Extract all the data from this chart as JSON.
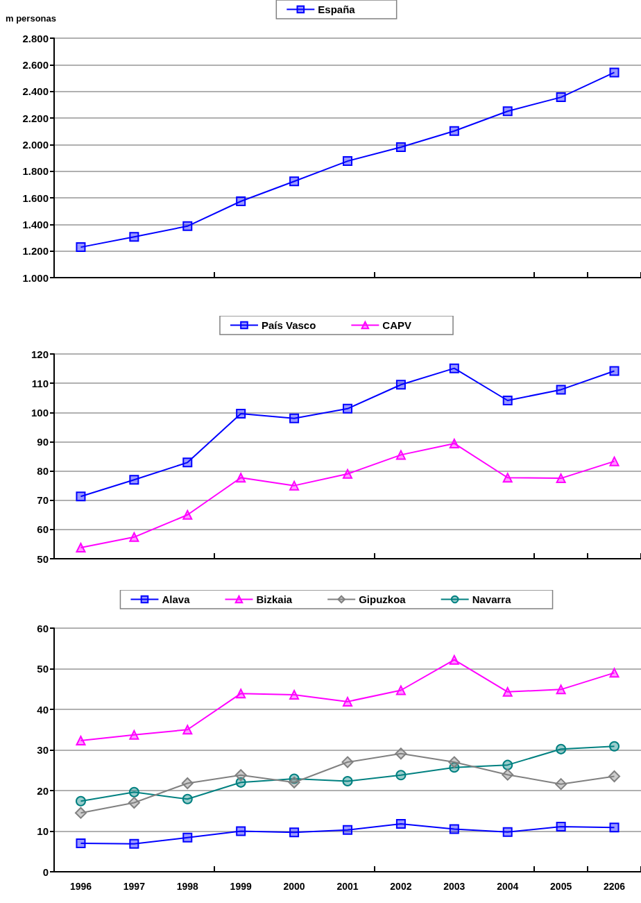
{
  "chart_data": [
    {
      "type": "line",
      "ylabel": "m personas",
      "categories": [
        "1996",
        "1997",
        "1998",
        "1999",
        "2000",
        "2001",
        "2002",
        "2003",
        "2004",
        "2005",
        "2206"
      ],
      "ylim": [
        1000,
        2800
      ],
      "yticks": [
        {
          "value": 1000,
          "label": "1.000"
        },
        {
          "value": 1200,
          "label": "1.200"
        },
        {
          "value": 1400,
          "label": "1.400"
        },
        {
          "value": 1600,
          "label": "1.600"
        },
        {
          "value": 1800,
          "label": "1.800"
        },
        {
          "value": 2000,
          "label": "2.000"
        },
        {
          "value": 2200,
          "label": "2.200"
        },
        {
          "value": 2400,
          "label": "2.400"
        },
        {
          "value": 2600,
          "label": "2.600"
        },
        {
          "value": 2800,
          "label": "2.800"
        }
      ],
      "grid": "y",
      "legend": "top",
      "tick_labels": "y",
      "series": [
        {
          "name": "España",
          "color": "#0000ff",
          "marker": "square",
          "values": [
            1229,
            1307,
            1387,
            1574,
            1724,
            1876,
            1981,
            2102,
            2251,
            2356,
            2542
          ]
        }
      ]
    },
    {
      "type": "line",
      "categories": [
        "1996",
        "1997",
        "1998",
        "1999",
        "2000",
        "2001",
        "2002",
        "2003",
        "2004",
        "2005",
        "2206"
      ],
      "ylim": [
        50,
        120
      ],
      "yticks": [
        50,
        60,
        70,
        80,
        90,
        100,
        110,
        120
      ],
      "grid": "y",
      "legend": "top",
      "tick_labels": "y",
      "series": [
        {
          "name": "País Vasco",
          "color": "#0000ff",
          "marker": "square",
          "values": [
            71.3,
            77.0,
            82.9,
            99.6,
            98.0,
            101.3,
            109.5,
            115.1,
            104.1,
            107.8,
            114.2
          ]
        },
        {
          "name": "CAPV",
          "color": "#ff00ff",
          "marker": "triangle",
          "values": [
            53.8,
            57.4,
            65.0,
            77.7,
            75.0,
            79.0,
            85.5,
            89.4,
            77.7,
            77.5,
            83.3
          ]
        }
      ]
    },
    {
      "type": "line",
      "categories": [
        "1996",
        "1997",
        "1998",
        "1999",
        "2000",
        "2001",
        "2002",
        "2003",
        "2004",
        "2005",
        "2206"
      ],
      "ylim": [
        0,
        60
      ],
      "yticks": [
        0,
        10,
        20,
        30,
        40,
        50,
        60
      ],
      "grid": "y",
      "legend": "top",
      "series": [
        {
          "name": "Alava",
          "color": "#0000ff",
          "marker": "square",
          "values": [
            7.0,
            6.9,
            8.4,
            10.0,
            9.7,
            10.3,
            11.8,
            10.5,
            9.8,
            11.1,
            10.9
          ]
        },
        {
          "name": "Bizkaia",
          "color": "#ff00ff",
          "marker": "triangle",
          "values": [
            32.3,
            33.7,
            35.0,
            43.9,
            43.6,
            41.9,
            44.7,
            52.2,
            44.3,
            44.9,
            49.0
          ]
        },
        {
          "name": "Gipuzkoa",
          "color": "#808080",
          "marker": "diamond",
          "values": [
            14.5,
            17.0,
            21.8,
            23.8,
            22.0,
            27.0,
            29.1,
            27.0,
            23.9,
            21.6,
            23.5
          ]
        },
        {
          "name": "Navarra",
          "color": "#008080",
          "marker": "circle",
          "values": [
            17.4,
            19.6,
            17.9,
            22.0,
            22.9,
            22.3,
            23.8,
            25.7,
            26.3,
            30.2,
            30.9
          ]
        }
      ]
    }
  ]
}
